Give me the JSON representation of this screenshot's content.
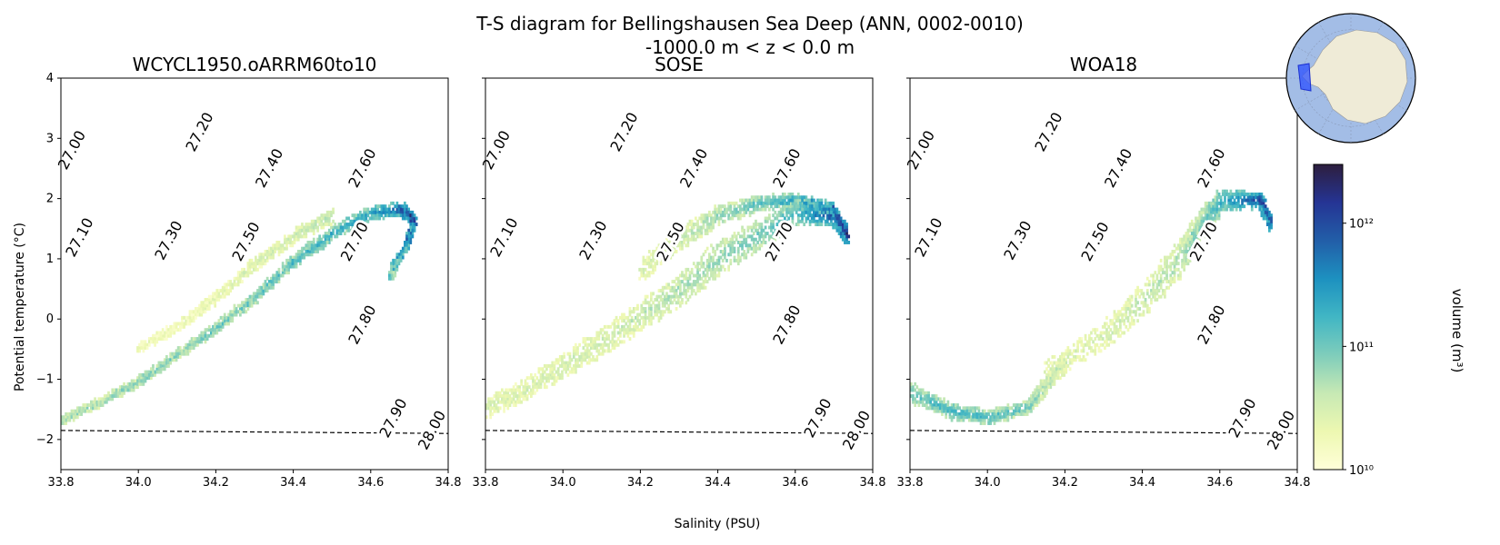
{
  "figure": {
    "title_line1": "T-S diagram for Bellingshausen Sea Deep (ANN, 0002-0010)",
    "title_line2": "-1000.0 m < z < 0.0 m",
    "xlabel": "Salinity (PSU)",
    "ylabel": "Potential temperature (°C)"
  },
  "chart_data": {
    "type": "heatmap",
    "xlim": [
      33.8,
      34.8
    ],
    "ylim": [
      -2.5,
      4
    ],
    "xticks": [
      33.8,
      34.0,
      34.2,
      34.4,
      34.6,
      34.8
    ],
    "xtick_labels": [
      "33.8",
      "34.0",
      "34.2",
      "34.4",
      "34.6",
      "34.8"
    ],
    "yticks": [
      -2,
      -1,
      0,
      1,
      2,
      3,
      4
    ],
    "ytick_labels": [
      "−2",
      "−1",
      "0",
      "1",
      "2",
      "3",
      "4"
    ],
    "freezing_line": [
      [
        33.8,
        -1.85
      ],
      [
        34.8,
        -1.9
      ]
    ],
    "density_contours": [
      {
        "level": 27.0,
        "label": "27.00",
        "label_pos": [
          33.83,
          2.8
        ]
      },
      {
        "level": 27.1,
        "label": "27.10",
        "label_pos": [
          33.85,
          1.35
        ]
      },
      {
        "level": 27.2,
        "label": "27.20",
        "label_pos": [
          34.16,
          3.1
        ]
      },
      {
        "level": 27.3,
        "label": "27.30",
        "label_pos": [
          34.08,
          1.3
        ]
      },
      {
        "level": 27.4,
        "label": "27.40",
        "label_pos": [
          34.34,
          2.5
        ]
      },
      {
        "level": 27.5,
        "label": "27.50",
        "label_pos": [
          34.28,
          1.28
        ]
      },
      {
        "level": 27.6,
        "label": "27.60",
        "label_pos": [
          34.58,
          2.5
        ]
      },
      {
        "level": 27.7,
        "label": "27.70",
        "label_pos": [
          34.56,
          1.28
        ]
      },
      {
        "level": 27.8,
        "label": "27.80",
        "label_pos": [
          34.58,
          -0.1
        ]
      },
      {
        "level": 27.9,
        "label": "27.90",
        "label_pos": [
          34.66,
          -1.65
        ]
      },
      {
        "level": 28.0,
        "label": "28.00",
        "label_pos": [
          34.76,
          -1.85
        ]
      }
    ],
    "panels": [
      {
        "title": "WCYCL1950.oARRM60to10",
        "series": [
          {
            "name": "main",
            "points": [
              [
                33.8,
                -1.7
              ],
              [
                33.9,
                -1.4
              ],
              [
                34.0,
                -1.05
              ],
              [
                34.1,
                -0.6
              ],
              [
                34.2,
                -0.15
              ],
              [
                34.3,
                0.35
              ],
              [
                34.4,
                0.95
              ],
              [
                34.5,
                1.4
              ],
              [
                34.6,
                1.75
              ],
              [
                34.68,
                1.8
              ],
              [
                34.71,
                1.6
              ]
            ],
            "widths": [
              0.12,
              0.12,
              0.14,
              0.15,
              0.16,
              0.16,
              0.2,
              0.22,
              0.22,
              0.2,
              0.15
            ],
            "weights": [
              0.35,
              0.35,
              0.4,
              0.4,
              0.45,
              0.45,
              0.5,
              0.55,
              0.6,
              0.85,
              0.95
            ]
          },
          {
            "name": "hook",
            "points": [
              [
                34.71,
                1.6
              ],
              [
                34.69,
                1.2
              ],
              [
                34.66,
                0.9
              ],
              [
                34.65,
                0.65
              ]
            ],
            "widths": [
              0.15,
              0.1,
              0.08,
              0.06
            ],
            "weights": [
              0.9,
              0.7,
              0.6,
              0.5
            ]
          },
          {
            "name": "upper_branch",
            "points": [
              [
                34.0,
                -0.5
              ],
              [
                34.1,
                -0.15
              ],
              [
                34.2,
                0.35
              ],
              [
                34.3,
                0.9
              ],
              [
                34.4,
                1.35
              ],
              [
                34.5,
                1.7
              ]
            ],
            "widths": [
              0.15,
              0.15,
              0.18,
              0.2,
              0.2,
              0.2
            ],
            "weights": [
              0.12,
              0.12,
              0.15,
              0.2,
              0.25,
              0.3
            ]
          }
        ]
      },
      {
        "title": "SOSE",
        "series": [
          {
            "name": "low_band",
            "points": [
              [
                33.8,
                -1.5
              ],
              [
                33.9,
                -1.2
              ],
              [
                34.0,
                -0.8
              ],
              [
                34.1,
                -0.4
              ],
              [
                34.2,
                0.05
              ],
              [
                34.3,
                0.45
              ],
              [
                34.4,
                1.0
              ],
              [
                34.5,
                1.35
              ],
              [
                34.6,
                1.75
              ],
              [
                34.7,
                1.7
              ],
              [
                34.73,
                1.35
              ]
            ],
            "widths": [
              0.3,
              0.35,
              0.4,
              0.45,
              0.5,
              0.55,
              0.55,
              0.5,
              0.45,
              0.35,
              0.25
            ],
            "weights": [
              0.2,
              0.2,
              0.22,
              0.22,
              0.25,
              0.3,
              0.35,
              0.4,
              0.5,
              0.85,
              0.95
            ]
          },
          {
            "name": "upper_band",
            "points": [
              [
                34.2,
                0.8
              ],
              [
                34.3,
                1.3
              ],
              [
                34.4,
                1.7
              ],
              [
                34.5,
                1.9
              ],
              [
                34.6,
                1.95
              ],
              [
                34.7,
                1.8
              ]
            ],
            "widths": [
              0.35,
              0.35,
              0.3,
              0.25,
              0.2,
              0.2
            ],
            "weights": [
              0.2,
              0.25,
              0.35,
              0.45,
              0.6,
              0.85
            ]
          }
        ]
      },
      {
        "title": "WOA18",
        "series": [
          {
            "name": "cold_tongue",
            "points": [
              [
                33.8,
                -1.25
              ],
              [
                33.9,
                -1.55
              ],
              [
                34.0,
                -1.65
              ],
              [
                34.1,
                -1.5
              ],
              [
                34.15,
                -1.1
              ],
              [
                34.2,
                -0.7
              ]
            ],
            "widths": [
              0.3,
              0.25,
              0.22,
              0.22,
              0.25,
              0.3
            ],
            "weights": [
              0.45,
              0.5,
              0.5,
              0.42,
              0.3,
              0.2
            ]
          },
          {
            "name": "main",
            "points": [
              [
                34.15,
                -0.9
              ],
              [
                34.3,
                -0.3
              ],
              [
                34.4,
                0.3
              ],
              [
                34.5,
                1.0
              ],
              [
                34.55,
                1.55
              ],
              [
                34.6,
                1.95
              ],
              [
                34.7,
                1.95
              ],
              [
                34.73,
                1.55
              ]
            ],
            "widths": [
              0.35,
              0.45,
              0.55,
              0.6,
              0.5,
              0.35,
              0.25,
              0.2
            ],
            "weights": [
              0.18,
              0.2,
              0.25,
              0.3,
              0.4,
              0.55,
              0.85,
              0.95
            ]
          }
        ]
      }
    ],
    "colorbar": {
      "label": "volume (m³)",
      "scale": "log",
      "range": [
        10000000000.0,
        3000000000000.0
      ],
      "tick_labels": [
        "10¹⁰",
        "10¹¹",
        "10¹²"
      ],
      "tick_values": [
        10000000000.0,
        100000000000.0,
        1000000000000.0
      ],
      "colors": [
        "#ffffd9",
        "#edf8b1",
        "#c7e9b4",
        "#7fcdbb",
        "#41b6c4",
        "#1d91c0",
        "#225ea8",
        "#253494",
        "#2d1e3e"
      ]
    },
    "inset_map": {
      "ocean_color": "#a3bde6",
      "land_color": "#efebd7",
      "region_color": "#2b50ff"
    }
  }
}
